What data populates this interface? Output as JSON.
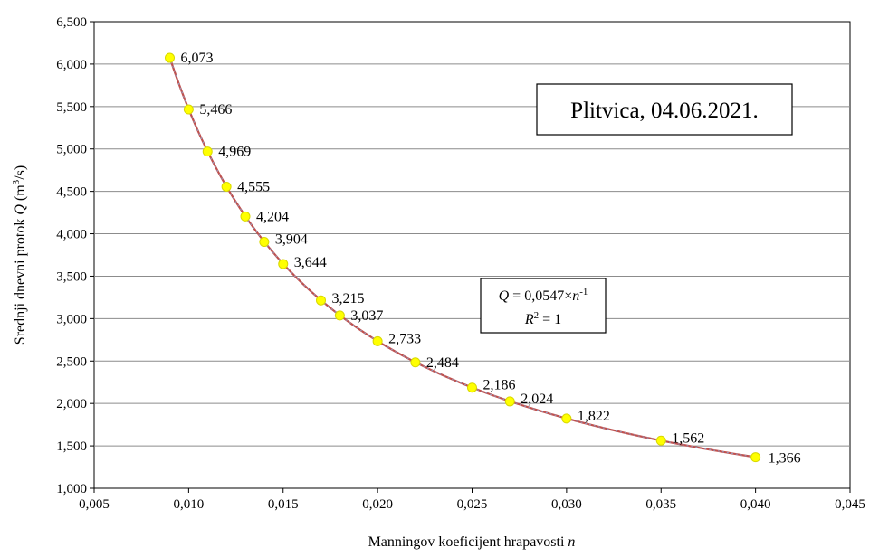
{
  "chart_data": {
    "type": "scatter",
    "x": [
      0.009,
      0.01,
      0.011,
      0.012,
      0.013,
      0.014,
      0.015,
      0.017,
      0.018,
      0.02,
      0.022,
      0.025,
      0.027,
      0.03,
      0.035,
      0.04
    ],
    "y": [
      6.073,
      5.466,
      4.969,
      4.555,
      4.204,
      3.904,
      3.644,
      3.215,
      3.037,
      2.733,
      2.484,
      2.186,
      2.024,
      1.822,
      1.562,
      1.366
    ],
    "data_labels": [
      "6,073",
      "5,466",
      "4,969",
      "4,555",
      "4,204",
      "3,904",
      "3,644",
      "3,215",
      "3,037",
      "2,733",
      "2,484",
      "2,186",
      "2,024",
      "1,822",
      "1,562",
      "1,366"
    ],
    "trendline": {
      "type": "power",
      "coefficient": 0.0547,
      "exponent": -1
    },
    "xlim": [
      0.005,
      0.045
    ],
    "ylim": [
      1.0,
      6.5
    ],
    "xticks": [
      0.005,
      0.01,
      0.015,
      0.02,
      0.025,
      0.03,
      0.035,
      0.04,
      0.045
    ],
    "xtick_labels": [
      "0,005",
      "0,010",
      "0,015",
      "0,020",
      "0,025",
      "0,030",
      "0,035",
      "0,040",
      "0,045"
    ],
    "yticks": [
      1.0,
      1.5,
      2.0,
      2.5,
      3.0,
      3.5,
      4.0,
      4.5,
      5.0,
      5.5,
      6.0,
      6.5
    ],
    "ytick_labels": [
      "1,000",
      "1,500",
      "2,000",
      "2,500",
      "3,000",
      "3,500",
      "4,000",
      "4,500",
      "5,000",
      "5,500",
      "6,000",
      "6,500"
    ],
    "grid": "horizontal",
    "xlabel": {
      "text": "Manningov koeficijent hrapavosti ",
      "var": "n"
    },
    "ylabel": {
      "text": "Srednji dnevni protok ",
      "var": "Q",
      "unit_pre": " (m",
      "unit_sup": "3",
      "unit_post": "/s)"
    },
    "annotation": "Plitvica, 04.06.2021.",
    "equation": {
      "q": "Q",
      "eq_mid": " = 0,0547×",
      "n": "n",
      "exp": "-1",
      "r": "R",
      "r_sup": "2",
      "r_val": " = 1"
    },
    "colors": {
      "marker": "#ffff00",
      "marker_edge": "#d8d800",
      "trendline": "#c0504d",
      "trendline_dash": "#8fa0c8",
      "grid": "#8c8c8c"
    }
  }
}
